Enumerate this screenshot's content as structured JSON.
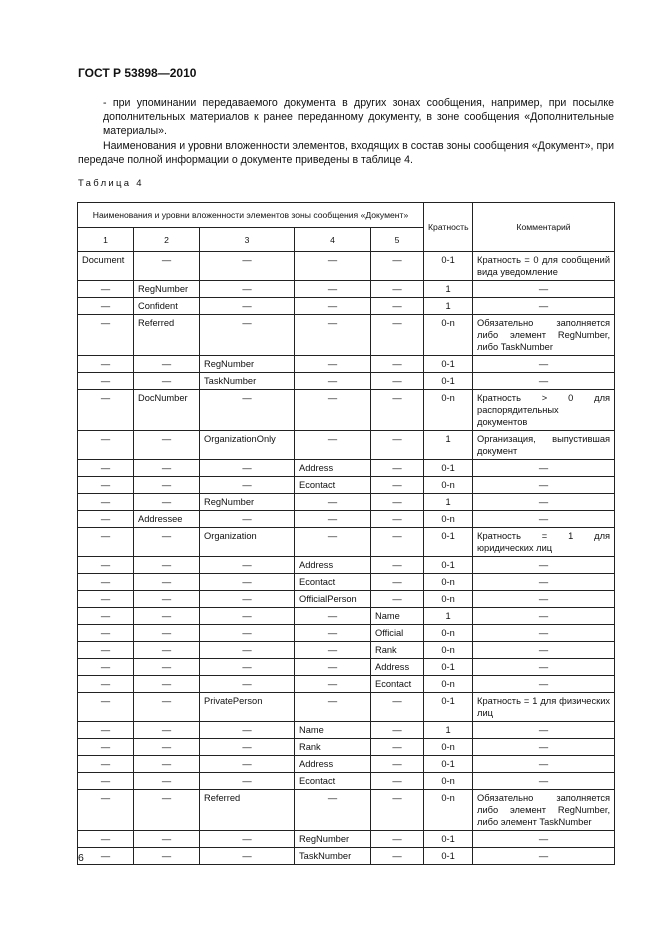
{
  "header": {
    "doc_id": "ГОСТ Р 53898—2010"
  },
  "paragraphs": [
    "- при упоминании передаваемого документа в других зонах сообщения, например, при посылке дополнительных материалов к ранее переданному документу, в зоне сообщения «Дополнительные материалы».",
    "Наименования и уровни вложенности элементов, входящих в состав зоны сообщения «Документ», при передаче полной информации о документе приведены в таблице 4."
  ],
  "table": {
    "caption": "Таблица 4",
    "group_header": "Наименования и уровни вложенности элементов зоны сообщения «Документ»",
    "multiplicity_header": "Кратность",
    "comment_header": "Комментарий",
    "level_headers": [
      "1",
      "2",
      "3",
      "4",
      "5"
    ],
    "rows": [
      [
        "Document",
        "—",
        "—",
        "—",
        "—",
        "0-1",
        "Кратность = 0 для сообщений вида уведомление"
      ],
      [
        "—",
        "RegNumber",
        "—",
        "—",
        "—",
        "1",
        "—"
      ],
      [
        "—",
        "Confident",
        "—",
        "—",
        "—",
        "1",
        "—"
      ],
      [
        "—",
        "Referred",
        "—",
        "—",
        "—",
        "0-n",
        "Обязательно заполняется либо элемент RegNumber, либо TaskNumber"
      ],
      [
        "—",
        "—",
        "RegNumber",
        "—",
        "—",
        "0-1",
        "—"
      ],
      [
        "—",
        "—",
        "TaskNumber",
        "—",
        "—",
        "0-1",
        "—"
      ],
      [
        "—",
        "DocNumber",
        "—",
        "—",
        "—",
        "0-n",
        "Кратность > 0 для распорядительных документов"
      ],
      [
        "—",
        "—",
        "OrganizationOnly",
        "—",
        "—",
        "1",
        "Организация, выпустившая документ"
      ],
      [
        "—",
        "—",
        "—",
        "Address",
        "—",
        "0-1",
        "—"
      ],
      [
        "—",
        "—",
        "—",
        "Econtact",
        "—",
        "0-n",
        "—"
      ],
      [
        "—",
        "—",
        "RegNumber",
        "—",
        "—",
        "1",
        "—"
      ],
      [
        "—",
        "Addressee",
        "—",
        "—",
        "—",
        "0-n",
        "—"
      ],
      [
        "—",
        "—",
        "Organization",
        "—",
        "—",
        "0-1",
        "Кратность = 1 для юридических лиц"
      ],
      [
        "—",
        "—",
        "—",
        "Address",
        "—",
        "0-1",
        "—"
      ],
      [
        "—",
        "—",
        "—",
        "Econtact",
        "—",
        "0-n",
        "—"
      ],
      [
        "—",
        "—",
        "—",
        "OfficialPerson",
        "—",
        "0-n",
        "—"
      ],
      [
        "—",
        "—",
        "—",
        "—",
        "Name",
        "1",
        "—"
      ],
      [
        "—",
        "—",
        "—",
        "—",
        "Official",
        "0-n",
        "—"
      ],
      [
        "—",
        "—",
        "—",
        "—",
        "Rank",
        "0-n",
        "—"
      ],
      [
        "—",
        "—",
        "—",
        "—",
        "Address",
        "0-1",
        "—"
      ],
      [
        "—",
        "—",
        "—",
        "—",
        "Econtact",
        "0-n",
        "—"
      ],
      [
        "—",
        "—",
        "PrivatePerson",
        "—",
        "—",
        "0-1",
        "Кратность = 1 для физических лиц"
      ],
      [
        "—",
        "—",
        "—",
        "Name",
        "—",
        "1",
        "—"
      ],
      [
        "—",
        "—",
        "—",
        "Rank",
        "—",
        "0-n",
        "—"
      ],
      [
        "—",
        "—",
        "—",
        "Address",
        "—",
        "0-1",
        "—"
      ],
      [
        "—",
        "—",
        "—",
        "Econtact",
        "—",
        "0-n",
        "—"
      ],
      [
        "—",
        "—",
        "Referred",
        "—",
        "—",
        "0-n",
        "Обязательно заполняется либо элемент RegNumber, либо элемент TaskNumber"
      ],
      [
        "—",
        "—",
        "—",
        "RegNumber",
        "—",
        "0-1",
        "—"
      ],
      [
        "—",
        "—",
        "—",
        "TaskNumber",
        "—",
        "0-1",
        "—"
      ]
    ]
  },
  "footer": {
    "page_number": "6"
  }
}
